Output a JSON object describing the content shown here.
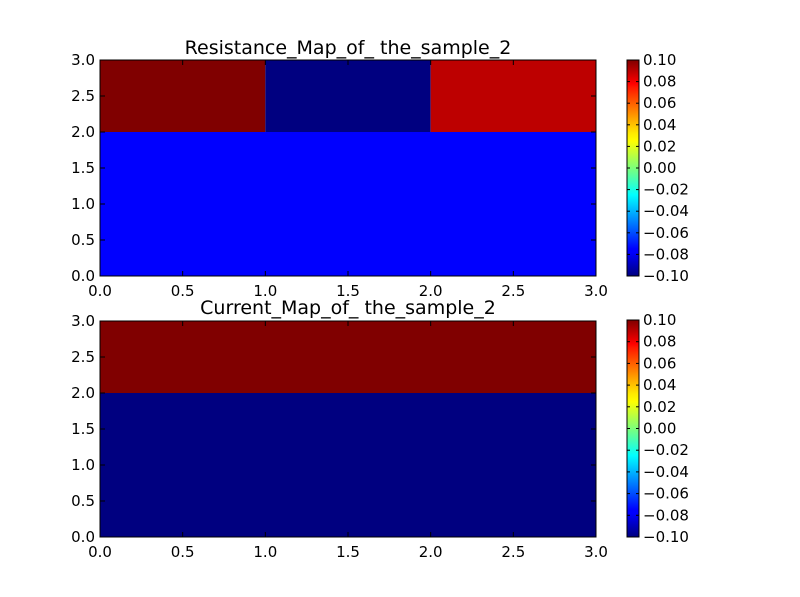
{
  "chart_data": [
    {
      "type": "heatmap",
      "title": "Resistance_Map_of_ the_sample_2",
      "xlabel": "",
      "ylabel": "",
      "xlim": [
        0.0,
        3.0
      ],
      "ylim": [
        0.0,
        3.0
      ],
      "x_ticks": [
        "0.0",
        "0.5",
        "1.0",
        "1.5",
        "2.0",
        "2.5",
        "3.0"
      ],
      "y_ticks": [
        "0.0",
        "0.5",
        "1.0",
        "1.5",
        "2.0",
        "2.5",
        "3.0"
      ],
      "colormap": "jet",
      "vmin": -0.1,
      "vmax": 0.1,
      "grid": false,
      "colorbar_ticks": [
        "−0.10",
        "−0.08",
        "−0.06",
        "−0.04",
        "−0.02",
        "0.00",
        "0.02",
        "0.04",
        "0.06",
        "0.08",
        "0.10"
      ],
      "cells": [
        {
          "x0": 0,
          "x1": 1,
          "y0": 2,
          "y1": 3,
          "value": 0.1
        },
        {
          "x0": 1,
          "x1": 2,
          "y0": 2,
          "y1": 3,
          "value": -0.1
        },
        {
          "x0": 2,
          "x1": 3,
          "y0": 2,
          "y1": 3,
          "value": 0.088
        },
        {
          "x0": 0,
          "x1": 3,
          "y0": 0,
          "y1": 2,
          "value": -0.075
        }
      ]
    },
    {
      "type": "heatmap",
      "title": "Current_Map_of_ the_sample_2",
      "xlabel": "",
      "ylabel": "",
      "xlim": [
        0.0,
        3.0
      ],
      "ylim": [
        0.0,
        3.0
      ],
      "x_ticks": [
        "0.0",
        "0.5",
        "1.0",
        "1.5",
        "2.0",
        "2.5",
        "3.0"
      ],
      "y_ticks": [
        "0.0",
        "0.5",
        "1.0",
        "1.5",
        "2.0",
        "2.5",
        "3.0"
      ],
      "colormap": "jet",
      "vmin": -0.1,
      "vmax": 0.1,
      "grid": false,
      "colorbar_ticks": [
        "−0.10",
        "−0.08",
        "−0.06",
        "−0.04",
        "−0.02",
        "0.00",
        "0.02",
        "0.04",
        "0.06",
        "0.08",
        "0.10"
      ],
      "cells": [
        {
          "x0": 0,
          "x1": 3,
          "y0": 2,
          "y1": 3,
          "value": 0.1
        },
        {
          "x0": 0,
          "x1": 3,
          "y0": 0,
          "y1": 2,
          "value": -0.1
        }
      ]
    }
  ]
}
